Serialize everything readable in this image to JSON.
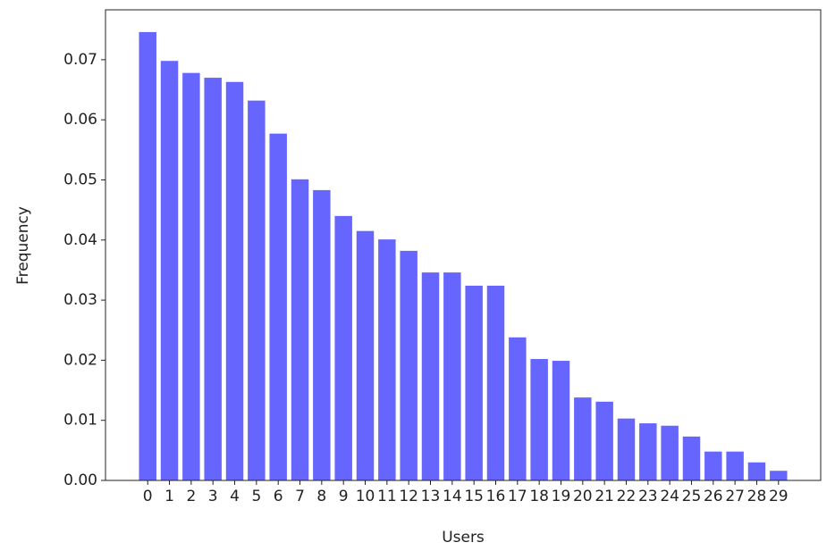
{
  "chart_data": {
    "type": "bar",
    "x_label": "Users",
    "y_label": "Frequency",
    "categories": [
      "0",
      "1",
      "2",
      "3",
      "4",
      "5",
      "6",
      "7",
      "8",
      "9",
      "10",
      "11",
      "12",
      "13",
      "14",
      "15",
      "16",
      "17",
      "18",
      "19",
      "20",
      "21",
      "22",
      "23",
      "24",
      "25",
      "26",
      "27",
      "28",
      "29"
    ],
    "values": [
      0.0746,
      0.0698,
      0.0678,
      0.067,
      0.0663,
      0.0632,
      0.0577,
      0.0501,
      0.0483,
      0.044,
      0.0415,
      0.0401,
      0.0382,
      0.0346,
      0.0346,
      0.0324,
      0.0324,
      0.0238,
      0.0202,
      0.0199,
      0.0138,
      0.0131,
      0.0103,
      0.0095,
      0.0091,
      0.0073,
      0.0048,
      0.0048,
      0.003,
      0.0016
    ],
    "color": "#6666ff",
    "ylim": [
      0,
      0.0783
    ],
    "yticks": [
      {
        "value": 0,
        "label": "0.00"
      },
      {
        "value": 0.01,
        "label": "0.01"
      },
      {
        "value": 0.02,
        "label": "0.02"
      },
      {
        "value": 0.03,
        "label": "0.03"
      },
      {
        "value": 0.04,
        "label": "0.04"
      },
      {
        "value": 0.05,
        "label": "0.05"
      },
      {
        "value": 0.06,
        "label": "0.06"
      },
      {
        "value": 0.07,
        "label": "0.07"
      }
    ],
    "grid": false
  }
}
